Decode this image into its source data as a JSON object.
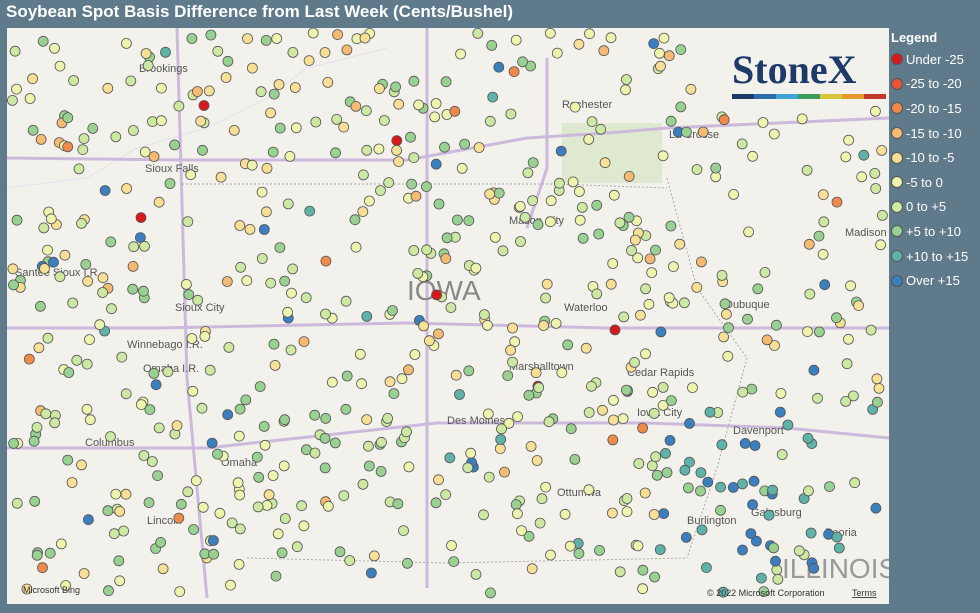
{
  "title": "Soybean Spot Basis Difference from Last Week (Cents/Bushel)",
  "legend": {
    "title": "Legend",
    "items": [
      {
        "label": "Under -25",
        "color": "#d7191c"
      },
      {
        "label": "-25 to -20",
        "color": "#e8553a"
      },
      {
        "label": "-20 to -15",
        "color": "#f08a4b"
      },
      {
        "label": "-15 to -10",
        "color": "#f5bb72"
      },
      {
        "label": "-10 to -5",
        "color": "#f7df95"
      },
      {
        "label": "-5 to 0",
        "color": "#eef3ae"
      },
      {
        "label": "0 to +5",
        "color": "#cde8a2"
      },
      {
        "label": "+5 to +10",
        "color": "#98d192"
      },
      {
        "label": "+10 to +15",
        "color": "#5fb2a8"
      },
      {
        "label": "Over +15",
        "color": "#3b7fbf"
      }
    ]
  },
  "map": {
    "labels": [
      "Brookings",
      "Rochester",
      "La Crosse",
      "Sioux Falls",
      "Mason City",
      "Madison",
      "Santee Sioux I.R.",
      "Sioux City",
      "IOWA",
      "Waterloo",
      "Dubuque",
      "Winnebago I.R.",
      "Omaha I.R.",
      "Marshalltown",
      "Cedar Rapids",
      "Davenport",
      "Columbus",
      "Des Moines",
      "Omaha",
      "Ottumwa",
      "Galesburg",
      "Burlington",
      "Lincoln",
      "Peoria",
      "ILLINOIS",
      "Iowa City"
    ],
    "attribution": "© 2022 Microsoft Corporation",
    "terms": "Terms",
    "provider": "Microsoft Bing"
  },
  "logo": "StoneX"
}
